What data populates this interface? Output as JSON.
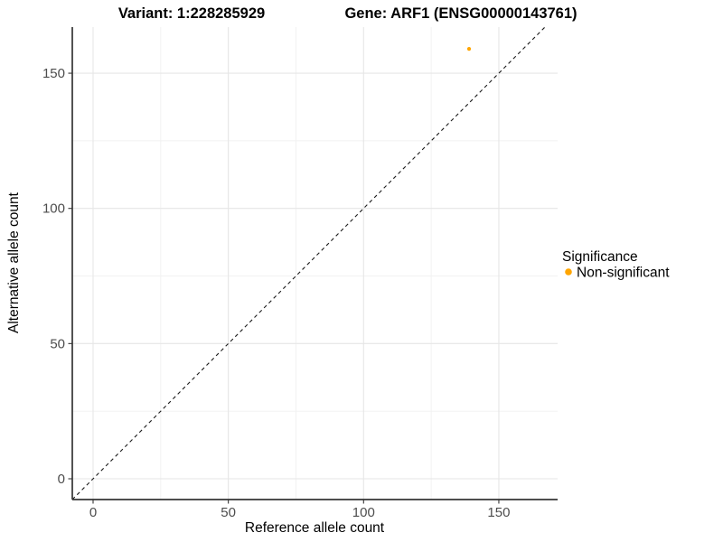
{
  "titles": {
    "variant": "Variant: 1:228285929",
    "gene": "Gene: ARF1 (ENSG00000143761)"
  },
  "chart_data": {
    "type": "scatter",
    "title_left": "Variant: 1:228285929",
    "title_right": "Gene: ARF1 (ENSG00000143761)",
    "xlabel": "Reference allele count",
    "ylabel": "Alternative allele count",
    "x_ticks": [
      0,
      50,
      100,
      150
    ],
    "y_ticks": [
      0,
      50,
      100,
      150
    ],
    "x_minor_ticks": [
      25,
      75,
      125,
      175
    ],
    "y_minor_ticks": [
      25,
      75,
      125,
      175
    ],
    "xlim": [
      -7.7,
      171.7
    ],
    "ylim": [
      -7.7,
      167.1
    ],
    "grid": true,
    "legend_position": "right",
    "series": [
      {
        "name": "Non-significant",
        "color": "#FFA500",
        "points": [
          {
            "x": 139,
            "y": 159
          }
        ]
      }
    ],
    "identity_line": {
      "slope": 1,
      "intercept": 0,
      "style": "dashed",
      "color": "#1a1a1a"
    },
    "legend": {
      "title": "Significance",
      "items": [
        {
          "label": "Non-significant",
          "color": "#FFA500"
        }
      ]
    }
  },
  "style_colors": {
    "axis_line": "#343434",
    "tick_label": "#4d4d4d",
    "grid_major": "#e6e6e6",
    "grid_minor": "#f1f1f1",
    "point": "#FFA500"
  }
}
